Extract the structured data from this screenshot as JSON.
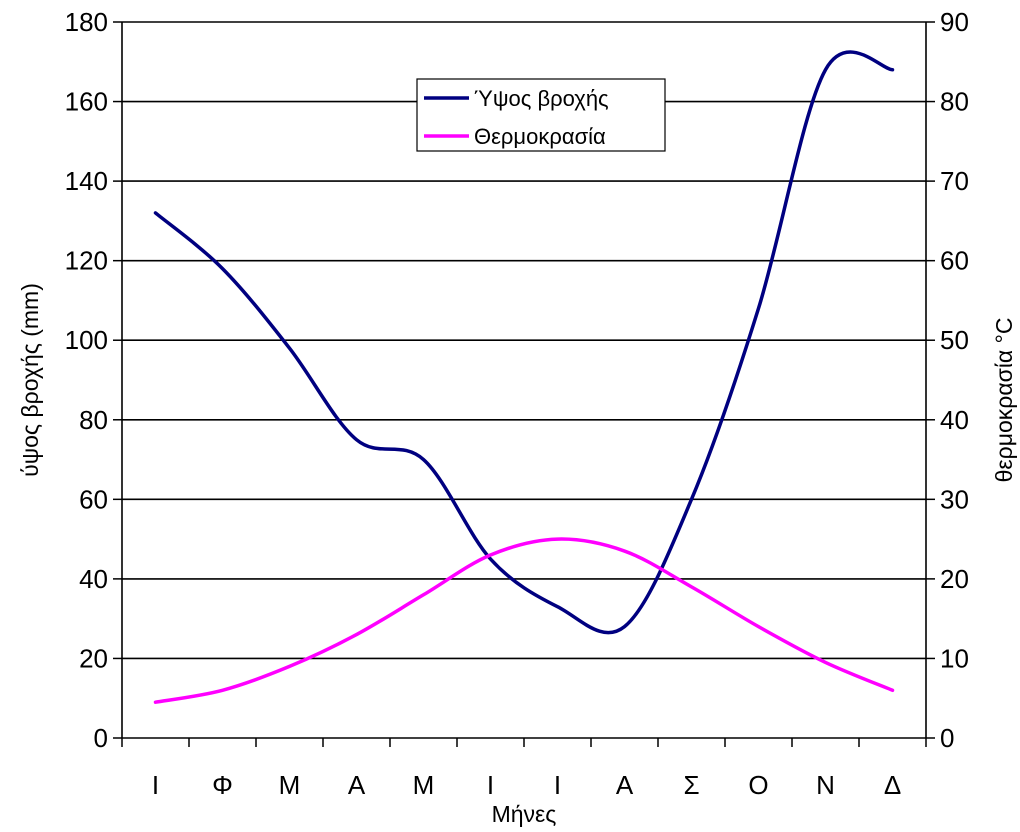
{
  "chart_data": {
    "type": "line",
    "categories": [
      "Ι",
      "Φ",
      "Μ",
      "Α",
      "Μ",
      "Ι",
      "Ι",
      "Α",
      "Σ",
      "Ο",
      "Ν",
      "Δ"
    ],
    "xlabel": "Μήνες",
    "ylabel_left": "ύψος βροχής (mm)",
    "ylabel_right": "θερμοκρασία °C",
    "ylim_left": [
      0,
      180
    ],
    "ylim_right": [
      0,
      90
    ],
    "left_ticks": [
      "0",
      "20",
      "40",
      "60",
      "80",
      "100",
      "120",
      "140",
      "160",
      "180"
    ],
    "right_ticks": [
      "0",
      "10",
      "20",
      "30",
      "40",
      "50",
      "60",
      "70",
      "80",
      "90"
    ],
    "grid": true,
    "legend_position": "top-center",
    "series": [
      {
        "name": "Ύψος βροχής",
        "axis": "left",
        "color": "#000080",
        "values": [
          132,
          118,
          98,
          75,
          70,
          45,
          33,
          28,
          60,
          108,
          168,
          168
        ]
      },
      {
        "name": "Θερμοκρασία",
        "axis": "right",
        "color": "#ff00ff",
        "values": [
          4.5,
          6,
          9,
          13,
          18,
          23,
          25,
          23.5,
          19,
          14,
          9.5,
          6
        ]
      }
    ]
  }
}
